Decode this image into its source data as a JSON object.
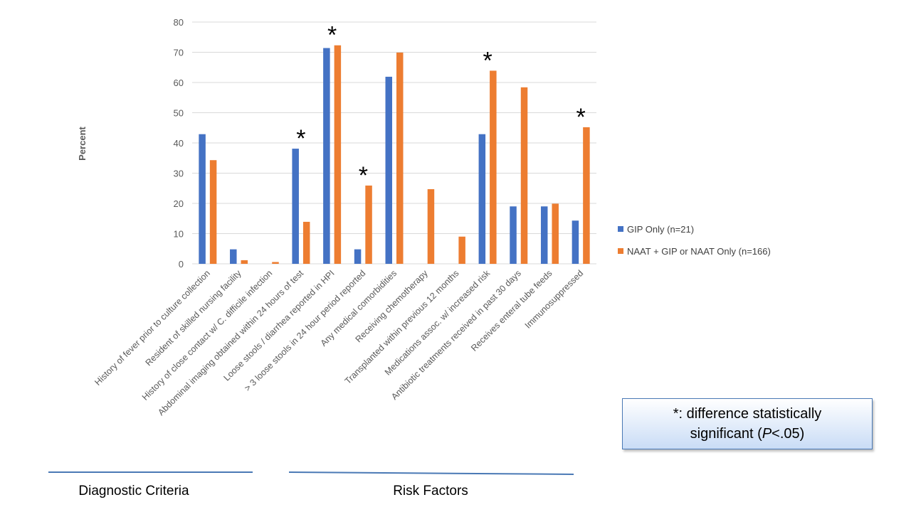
{
  "chart_data": {
    "type": "bar",
    "title": "",
    "ylabel": "Percent",
    "xlabel": "",
    "ylim": [
      0,
      80
    ],
    "yticks": [
      0,
      10,
      20,
      30,
      40,
      50,
      60,
      70,
      80
    ],
    "grid": true,
    "legend_position": "right",
    "categories": [
      "History of fever prior to culture collection",
      "Resident of skilled nursing facility",
      "History of close contact w/ C. difficile infection",
      "Abdominal imaging obtained within 24 hours of test",
      "Loose stools / diarrhea reported in HPI",
      "> 3 loose stools in 24 hour period reported",
      "Any medical comorbidities",
      "Receiving chemotherapy",
      "Transplanted within previous 12 months",
      "Medications assoc. w/ increased risk",
      "Antibiotic treatments received in past 30 days",
      "Receives enteral tube feeds",
      "Immunosuppressed"
    ],
    "series": [
      {
        "name": "GIP Only (n=21)",
        "color": "#4472c4",
        "values": [
          42.9,
          4.8,
          0,
          38.1,
          71.4,
          4.8,
          61.9,
          0,
          0,
          42.9,
          19.0,
          19.0,
          14.3
        ]
      },
      {
        "name": "NAAT + GIP or NAAT Only (n=166)",
        "color": "#ed7d31",
        "values": [
          34.3,
          1.2,
          0.6,
          13.9,
          72.3,
          25.9,
          69.9,
          24.7,
          9.0,
          63.9,
          58.4,
          19.9,
          45.2
        ]
      }
    ],
    "significance_marker": "*",
    "significant_categories": [
      "Abdominal imaging obtained within 24 hours of test",
      "Loose stools / diarrhea reported in HPI",
      "> 3 loose stools in 24 hour period reported",
      "Medications assoc. w/ increased risk",
      "Immunosuppressed"
    ]
  },
  "groups": {
    "diagnostic": "Diagnostic Criteria",
    "risk": "Risk Factors",
    "line_color": "#4a79b5"
  },
  "note": {
    "text": "*: difference statistically significant (P<.05)",
    "line1": "*: difference statistically",
    "line2_prefix": "significant (",
    "line2_italic": "P",
    "line2_suffix": "<.05)"
  }
}
